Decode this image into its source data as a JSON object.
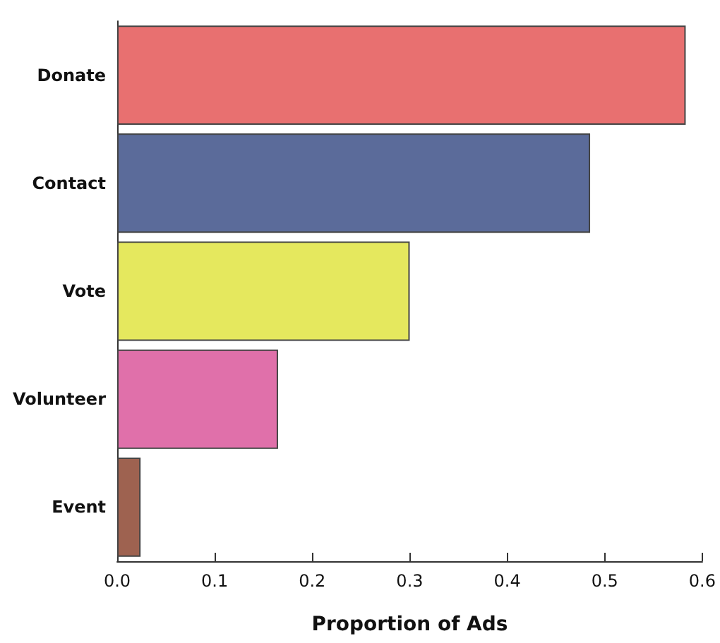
{
  "chart_data": {
    "type": "bar",
    "orientation": "horizontal",
    "xlabel": "Proportion of Ads",
    "categories": [
      "Donate",
      "Contact",
      "Vote",
      "Volunteer",
      "Event"
    ],
    "values": [
      0.583,
      0.485,
      0.3,
      0.165,
      0.024
    ],
    "colors": [
      "#e87070",
      "#5b6b9a",
      "#e5e85e",
      "#e070aa",
      "#9e6250"
    ],
    "xlim": [
      0,
      0.6
    ],
    "xticks": [
      {
        "value": 0,
        "label": "0.0"
      },
      0.1,
      0.2,
      0.3,
      0.4,
      0.5,
      0.6
    ],
    "grid": false
  }
}
